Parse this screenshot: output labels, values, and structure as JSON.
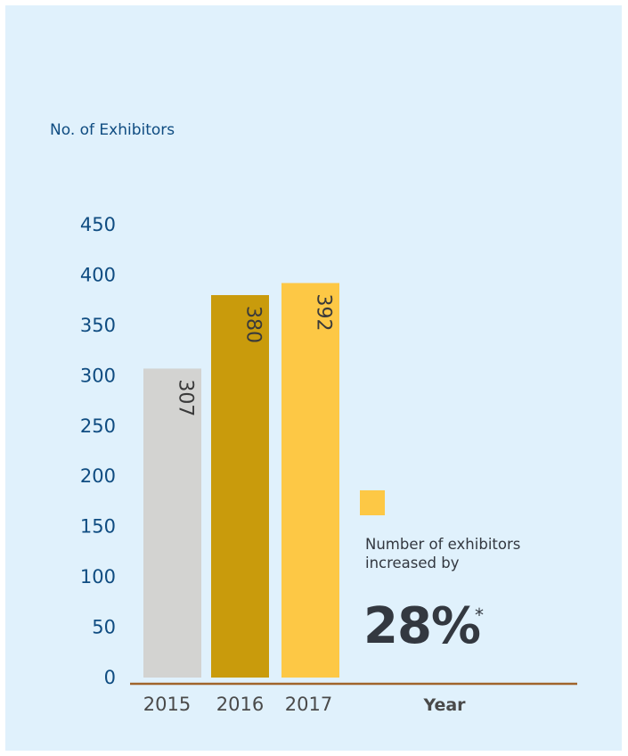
{
  "chart_data": {
    "type": "bar",
    "categories": [
      "2015",
      "2016",
      "2017"
    ],
    "values": [
      307,
      380,
      392
    ],
    "bar_colors": [
      "#d3d3d1",
      "#c99b0c",
      "#fdc845"
    ],
    "title": "",
    "ylabel": "No. of Exhibitors",
    "xlabel": "Year",
    "ylim": [
      0,
      450
    ],
    "yticks": [
      0,
      50,
      100,
      150,
      200,
      250,
      300,
      350,
      400,
      450
    ],
    "grid": false
  },
  "annotation": {
    "legend_swatch_color": "#fdc845",
    "text": "Number of exhibitors increased by",
    "percentage": "28%",
    "footnote_mark": "*"
  },
  "colors": {
    "background": "#e0f1fc",
    "axis_text": "#0f4c81",
    "axis_line": "#a0642c",
    "bar_label": "#3a3a3a"
  }
}
